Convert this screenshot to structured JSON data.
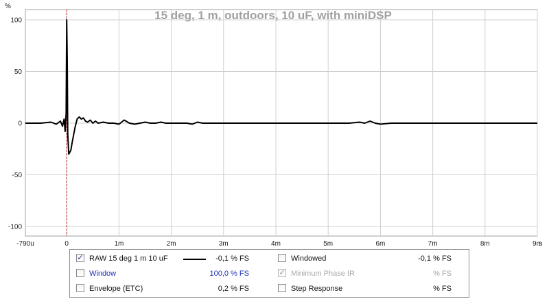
{
  "chart_data": {
    "type": "line",
    "title": "15 deg, 1 m, outdoors, 10 uF, with miniDSP",
    "ylabel": "%",
    "xlabel": "",
    "unit_suffix": "s",
    "xlim": [
      -0.00079,
      0.009
    ],
    "ylim": [
      -105,
      105
    ],
    "grid": true,
    "y_ticks": [
      100,
      50,
      0,
      -50,
      -100
    ],
    "y_tick_labels": [
      "100",
      "50",
      "0",
      "-50",
      "-100"
    ],
    "x_ticks": [
      -0.00079,
      0,
      0.001,
      0.002,
      0.003,
      0.004,
      0.005,
      0.006,
      0.007,
      0.008,
      0.009
    ],
    "x_tick_labels": [
      "-790u",
      "0",
      "1m",
      "2m",
      "3m",
      "4m",
      "5m",
      "6m",
      "7m",
      "8m",
      "9m"
    ],
    "marker_x": 0,
    "series": [
      {
        "color": "#000000",
        "x": [
          -0.00079,
          -0.0005,
          -0.0003,
          -0.0002,
          -0.00012,
          -8e-05,
          -5e-05,
          -3e-05,
          -1e-05,
          0.0,
          1e-05,
          2e-05,
          4e-05,
          6e-05,
          8e-05,
          0.0001,
          0.00013,
          0.00016,
          0.0002,
          0.00024,
          0.00028,
          0.00032,
          0.00036,
          0.0004,
          0.00045,
          0.0005,
          0.00055,
          0.0006,
          0.0007,
          0.0008,
          0.0009,
          0.001,
          0.0011,
          0.0012,
          0.0013,
          0.0014,
          0.0015,
          0.0016,
          0.0017,
          0.0018,
          0.0019,
          0.002,
          0.0021,
          0.0022,
          0.0023,
          0.0024,
          0.0025,
          0.0026,
          0.0027,
          0.0028,
          0.003,
          0.0032,
          0.0034,
          0.0036,
          0.0038,
          0.004,
          0.0042,
          0.0044,
          0.0046,
          0.0048,
          0.005,
          0.0052,
          0.0054,
          0.0056,
          0.0057,
          0.0058,
          0.0059,
          0.006,
          0.0062,
          0.0064,
          0.0066,
          0.0068,
          0.007,
          0.0072,
          0.0074,
          0.0076,
          0.0078,
          0.008,
          0.0082,
          0.0084,
          0.0086,
          0.0088,
          0.009
        ],
        "y": [
          0,
          0,
          1,
          -1,
          2,
          -3,
          4,
          -8,
          10,
          100,
          60,
          -10,
          -30,
          -28,
          -26,
          -20,
          -12,
          -4,
          4,
          6,
          4,
          5,
          2,
          1,
          3,
          0,
          2,
          0,
          1,
          0,
          0,
          -1,
          3,
          0,
          -1,
          0,
          1,
          0,
          0,
          1,
          0,
          0,
          0,
          0,
          0,
          -1,
          1,
          0,
          0,
          0,
          0,
          0,
          0,
          0,
          0,
          0,
          0,
          0,
          0,
          0,
          0,
          0,
          0,
          1,
          0,
          2,
          0,
          -1,
          0,
          0,
          0,
          0,
          0,
          0,
          0,
          0,
          0,
          0,
          0,
          0,
          0,
          0,
          0
        ]
      }
    ]
  },
  "legend": {
    "raw": {
      "checked": true,
      "check_glyph": "✓",
      "label": "RAW 15 deg 1 m 10 uF",
      "value": "-0,1 % FS"
    },
    "windowed": {
      "checked": false,
      "label": "Windowed",
      "value": "-0,1 % FS"
    },
    "window": {
      "checked": false,
      "label": "Window",
      "value": "100,0 % FS"
    },
    "minimum_phase": {
      "checked": true,
      "check_glyph": "✓",
      "label": "Minimum Phase IR",
      "value": "% FS"
    },
    "envelope": {
      "checked": false,
      "label": "Envelope (ETC)",
      "value": "0,2 % FS"
    },
    "step_response": {
      "checked": false,
      "label": "Step Response",
      "value": "% FS"
    }
  }
}
